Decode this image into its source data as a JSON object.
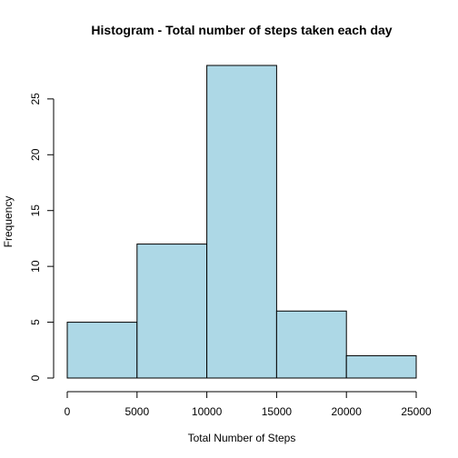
{
  "chart_data": {
    "type": "bar",
    "title": "Histogram - Total number of steps taken each day",
    "xlabel": "Total Number of Steps",
    "ylabel": "Frequency",
    "bins": [
      {
        "start": 0,
        "end": 5000,
        "count": 5
      },
      {
        "start": 5000,
        "end": 10000,
        "count": 12
      },
      {
        "start": 10000,
        "end": 15000,
        "count": 28
      },
      {
        "start": 15000,
        "end": 20000,
        "count": 6
      },
      {
        "start": 20000,
        "end": 25000,
        "count": 2
      }
    ],
    "xlim": [
      0,
      25000
    ],
    "ylim": [
      0,
      28
    ],
    "xticks": [
      0,
      5000,
      10000,
      15000,
      20000,
      25000
    ],
    "yticks": [
      0,
      5,
      10,
      15,
      20,
      25
    ],
    "bar_color": "#add8e6",
    "edge_color": "#000000",
    "grid": false
  }
}
